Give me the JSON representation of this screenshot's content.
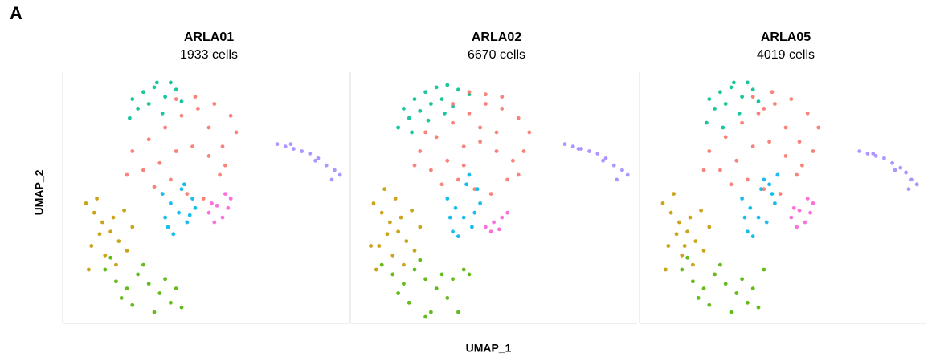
{
  "label": "A",
  "x_label": "UMAP_1",
  "y_label": "UMAP_2",
  "chart_data": [
    {
      "type": "scatter",
      "title": "ARLA01",
      "subtitle": "1933 cells",
      "xlim": [
        0,
        100
      ],
      "ylim": [
        0,
        100
      ],
      "series": [
        {
          "color": "#00C094",
          "x": [
            22,
            26,
            30,
            34,
            38,
            24,
            28,
            33,
            36,
            40,
            21,
            31
          ],
          "y": [
            92,
            95,
            97,
            93,
            96,
            88,
            90,
            86,
            99,
            91,
            84,
            99
          ]
        },
        {
          "color": "#F8766D",
          "x": [
            22,
            28,
            34,
            40,
            46,
            52,
            58,
            60,
            26,
            32,
            38,
            44,
            50,
            56,
            30,
            36,
            42,
            48,
            54,
            45,
            38,
            55,
            20,
            50
          ],
          "y": [
            70,
            75,
            80,
            85,
            88,
            90,
            85,
            78,
            62,
            65,
            70,
            72,
            68,
            64,
            55,
            58,
            52,
            50,
            60,
            93,
            92,
            72,
            60,
            80
          ]
        },
        {
          "color": "#A58AFF",
          "x": [
            75,
            78,
            81,
            84,
            87,
            90,
            93,
            96,
            98,
            80,
            89,
            95
          ],
          "y": [
            73,
            72,
            71,
            70,
            69,
            67,
            64,
            62,
            60,
            73,
            66,
            58
          ]
        },
        {
          "color": "#C49A00",
          "x": [
            5,
            8,
            11,
            14,
            17,
            20,
            7,
            12,
            16,
            19,
            6,
            10,
            15,
            22,
            9
          ],
          "y": [
            48,
            44,
            40,
            36,
            32,
            28,
            30,
            26,
            22,
            45,
            20,
            35,
            42,
            38,
            50
          ]
        },
        {
          "color": "#00B6EB",
          "x": [
            33,
            36,
            39,
            42,
            45,
            35,
            40,
            44,
            37,
            41,
            34,
            43
          ],
          "y": [
            52,
            48,
            44,
            40,
            46,
            38,
            54,
            50,
            35,
            56,
            42,
            43
          ]
        },
        {
          "color": "#FB61D7",
          "x": [
            50,
            53,
            56,
            58,
            52,
            55,
            57,
            51
          ],
          "y": [
            44,
            47,
            52,
            50,
            40,
            42,
            46,
            48
          ]
        },
        {
          "color": "#53B400",
          "x": [
            12,
            16,
            20,
            24,
            28,
            32,
            36,
            40,
            18,
            26,
            34,
            30,
            38,
            14,
            22
          ],
          "y": [
            20,
            15,
            12,
            18,
            14,
            10,
            6,
            4,
            8,
            22,
            16,
            2,
            12,
            25,
            5
          ]
        }
      ]
    },
    {
      "type": "scatter",
      "title": "ARLA02",
      "subtitle": "6670 cells",
      "xlim": [
        0,
        100
      ],
      "ylim": [
        0,
        100
      ],
      "series": [
        {
          "color": "#00C094",
          "x": [
            16,
            20,
            24,
            28,
            32,
            36,
            40,
            18,
            22,
            26,
            30,
            34,
            14,
            19,
            25,
            31
          ],
          "y": [
            88,
            92,
            95,
            97,
            98,
            96,
            94,
            84,
            87,
            90,
            92,
            89,
            80,
            78,
            83,
            86
          ]
        },
        {
          "color": "#F8766D",
          "x": [
            22,
            28,
            34,
            40,
            46,
            52,
            58,
            62,
            26,
            32,
            38,
            44,
            50,
            56,
            60,
            30,
            36,
            42,
            48,
            54,
            24,
            46,
            52,
            40,
            34,
            58,
            20,
            44,
            38,
            50
          ],
          "y": [
            70,
            76,
            82,
            86,
            90,
            88,
            84,
            78,
            62,
            66,
            72,
            74,
            70,
            66,
            70,
            56,
            58,
            54,
            52,
            58,
            78,
            94,
            93,
            95,
            90,
            60,
            64,
            80,
            64,
            78
          ]
        },
        {
          "color": "#A58AFF",
          "x": [
            75,
            78,
            81,
            84,
            87,
            90,
            93,
            96,
            98,
            80,
            89,
            94
          ],
          "y": [
            73,
            72,
            71,
            70,
            69,
            67,
            64,
            62,
            60,
            71,
            66,
            58
          ]
        },
        {
          "color": "#C49A00",
          "x": [
            5,
            8,
            11,
            14,
            17,
            20,
            7,
            12,
            16,
            19,
            6,
            10,
            15,
            22,
            9,
            4,
            13
          ],
          "y": [
            48,
            44,
            40,
            36,
            32,
            28,
            30,
            26,
            22,
            45,
            20,
            35,
            42,
            38,
            54,
            30,
            50
          ]
        },
        {
          "color": "#00B6EB",
          "x": [
            32,
            35,
            38,
            41,
            44,
            34,
            39,
            43,
            36,
            40,
            33,
            42
          ],
          "y": [
            50,
            46,
            42,
            38,
            48,
            36,
            56,
            54,
            34,
            60,
            42,
            44
          ]
        },
        {
          "color": "#FB61D7",
          "x": [
            46,
            49,
            52,
            54,
            48,
            51
          ],
          "y": [
            38,
            40,
            42,
            44,
            36,
            37
          ]
        },
        {
          "color": "#53B400",
          "x": [
            8,
            12,
            16,
            20,
            24,
            28,
            32,
            36,
            40,
            14,
            22,
            30,
            26,
            34,
            18,
            24,
            38
          ],
          "y": [
            22,
            18,
            14,
            20,
            16,
            12,
            8,
            2,
            18,
            10,
            24,
            18,
            2,
            16,
            6,
            0,
            20
          ]
        }
      ]
    },
    {
      "type": "scatter",
      "title": "ARLA05",
      "subtitle": "4019 cells",
      "xlim": [
        0,
        100
      ],
      "ylim": [
        0,
        100
      ],
      "series": [
        {
          "color": "#00C094",
          "x": [
            22,
            26,
            30,
            34,
            38,
            24,
            28,
            33,
            36,
            40,
            21,
            31,
            27
          ],
          "y": [
            92,
            95,
            97,
            93,
            96,
            88,
            90,
            86,
            99,
            91,
            82,
            99,
            80
          ]
        },
        {
          "color": "#F8766D",
          "x": [
            22,
            28,
            34,
            40,
            46,
            52,
            58,
            62,
            26,
            32,
            38,
            44,
            50,
            56,
            30,
            36,
            42,
            48,
            54,
            45,
            38,
            55,
            20,
            50,
            60,
            42
          ],
          "y": [
            70,
            76,
            82,
            86,
            90,
            92,
            86,
            80,
            62,
            66,
            72,
            74,
            68,
            64,
            56,
            58,
            54,
            52,
            60,
            95,
            93,
            74,
            62,
            80,
            70,
            88
          ]
        },
        {
          "color": "#A58AFF",
          "x": [
            77,
            80,
            83,
            86,
            89,
            92,
            94,
            96,
            98,
            82,
            90,
            95
          ],
          "y": [
            70,
            69,
            68,
            67,
            65,
            63,
            61,
            58,
            56,
            69,
            62,
            54
          ]
        },
        {
          "color": "#C49A00",
          "x": [
            5,
            8,
            11,
            14,
            17,
            20,
            7,
            12,
            16,
            19,
            6,
            10,
            15,
            22,
            9,
            13
          ],
          "y": [
            48,
            44,
            40,
            36,
            32,
            28,
            30,
            26,
            22,
            45,
            20,
            35,
            42,
            38,
            52,
            30
          ]
        },
        {
          "color": "#00B6EB",
          "x": [
            34,
            37,
            40,
            43,
            46,
            36,
            41,
            45,
            38,
            42,
            35,
            44,
            47
          ],
          "y": [
            50,
            46,
            42,
            40,
            48,
            36,
            54,
            52,
            34,
            58,
            42,
            56,
            60
          ]
        },
        {
          "color": "#FB61D7",
          "x": [
            52,
            55,
            58,
            60,
            54,
            57,
            59,
            53
          ],
          "y": [
            42,
            45,
            50,
            48,
            38,
            40,
            44,
            46
          ]
        },
        {
          "color": "#53B400",
          "x": [
            12,
            16,
            20,
            24,
            28,
            32,
            36,
            40,
            18,
            26,
            34,
            30,
            38,
            14,
            22,
            42
          ],
          "y": [
            20,
            15,
            12,
            18,
            14,
            10,
            6,
            4,
            8,
            22,
            16,
            2,
            12,
            25,
            5,
            20
          ]
        }
      ]
    }
  ]
}
